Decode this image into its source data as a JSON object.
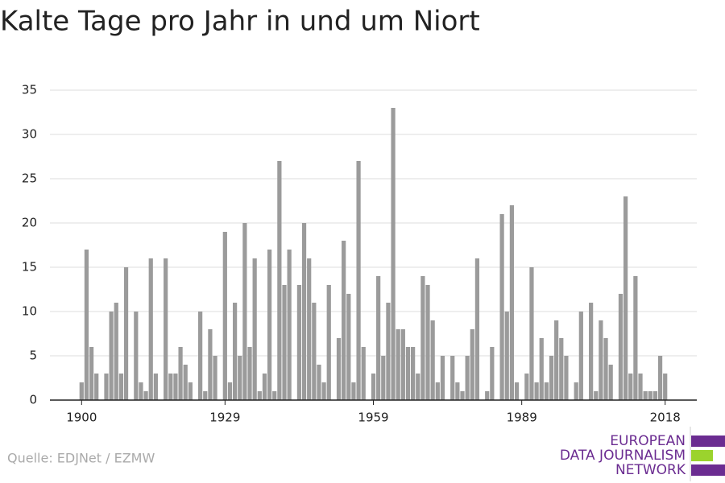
{
  "chart_data": {
    "type": "bar",
    "title": "Kalte Tage pro Jahr in und um Niort",
    "x": [
      1900,
      1901,
      1902,
      1903,
      1904,
      1905,
      1906,
      1907,
      1908,
      1909,
      1910,
      1911,
      1912,
      1913,
      1914,
      1915,
      1916,
      1917,
      1918,
      1919,
      1920,
      1921,
      1922,
      1923,
      1924,
      1925,
      1926,
      1927,
      1928,
      1929,
      1930,
      1931,
      1932,
      1933,
      1934,
      1935,
      1936,
      1937,
      1938,
      1939,
      1940,
      1941,
      1942,
      1943,
      1944,
      1945,
      1946,
      1947,
      1948,
      1949,
      1950,
      1951,
      1952,
      1953,
      1954,
      1955,
      1956,
      1957,
      1958,
      1959,
      1960,
      1961,
      1962,
      1963,
      1964,
      1965,
      1966,
      1967,
      1968,
      1969,
      1970,
      1971,
      1972,
      1973,
      1974,
      1975,
      1976,
      1977,
      1978,
      1979,
      1980,
      1981,
      1982,
      1983,
      1984,
      1985,
      1986,
      1987,
      1988,
      1989,
      1990,
      1991,
      1992,
      1993,
      1994,
      1995,
      1996,
      1997,
      1998,
      1999,
      2000,
      2001,
      2002,
      2003,
      2004,
      2005,
      2006,
      2007,
      2008,
      2009,
      2010,
      2011,
      2012,
      2013,
      2014,
      2015,
      2016,
      2017,
      2018
    ],
    "values": [
      2,
      17,
      6,
      3,
      0,
      3,
      10,
      11,
      3,
      15,
      0,
      10,
      2,
      1,
      16,
      3,
      0,
      16,
      3,
      3,
      6,
      4,
      2,
      0,
      10,
      1,
      8,
      5,
      0,
      19,
      2,
      11,
      5,
      20,
      6,
      16,
      1,
      3,
      17,
      1,
      27,
      13,
      17,
      0,
      13,
      20,
      16,
      11,
      4,
      2,
      13,
      0,
      7,
      18,
      12,
      2,
      27,
      6,
      0,
      3,
      14,
      5,
      11,
      33,
      8,
      8,
      6,
      6,
      3,
      14,
      13,
      9,
      2,
      5,
      0,
      5,
      2,
      1,
      5,
      8,
      16,
      0,
      1,
      6,
      0,
      21,
      10,
      22,
      2,
      0,
      3,
      15,
      2,
      7,
      2,
      5,
      9,
      7,
      5,
      0,
      2,
      10,
      0,
      11,
      1,
      9,
      7,
      4,
      0,
      12,
      23,
      3,
      14,
      3,
      1,
      1,
      1,
      5,
      3
    ],
    "color": "#9b9b9b",
    "xlim": [
      1893.6,
      2024.4
    ],
    "xticks": [
      1900,
      1929,
      1959,
      1989,
      2018
    ],
    "ylim": [
      0,
      35
    ],
    "yticks": [
      0,
      5,
      10,
      15,
      20,
      25,
      30,
      35
    ],
    "grid": true
  },
  "source": "Quelle: EDJNet / EZMW",
  "logo": [
    "EUROPEAN",
    "DATA JOURNALISM",
    "NETWORK"
  ]
}
